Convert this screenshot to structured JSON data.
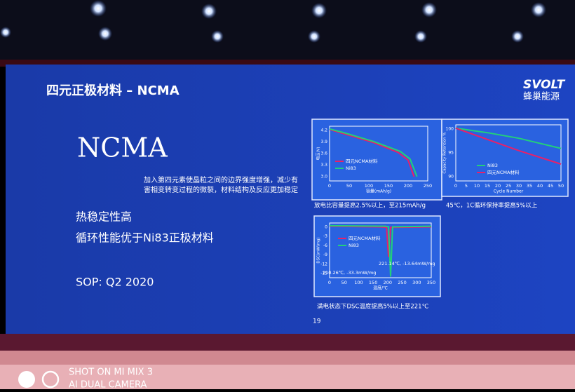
{
  "slide": {
    "title": "四元正极材料 – NCMA",
    "logo": "SVOLT",
    "logo_sub": "蜂巢能源",
    "heading": "NCMA",
    "description": [
      "加入第四元素使晶粒之间的边界强度增强，减少有",
      "害相变转变过程的微裂，材料结构及反应更加稳定"
    ],
    "points": [
      "热稳定性高",
      "循环性能优于Ni83正极材料"
    ],
    "sop": "SOP: Q2 2020",
    "page": "19",
    "charts": [
      {
        "ylabel": "电压(V)",
        "yticks": [
          "4.2",
          "3.9",
          "3.6",
          "3.3",
          "3.0"
        ],
        "xticks": [
          "0",
          "50",
          "100",
          "150",
          "200",
          "250"
        ],
        "xlabel": "容量(mAh/g)",
        "legend": [
          "四元NCMA材料",
          "Ni83"
        ],
        "caption": "放电比容量提高2.5%以上，至215mAh/g"
      },
      {
        "ylabel": "Capacity Retention %",
        "yticks": [
          "100",
          "95",
          "90"
        ],
        "xticks": [
          "0",
          "5",
          "10",
          "15",
          "20",
          "25",
          "30",
          "35",
          "40",
          "45",
          "50"
        ],
        "xlabel": "Cycle Number",
        "legend": [
          "Ni83",
          "四元NCMA材料"
        ],
        "caption": "45℃，1C循环保持率提高5%以上"
      },
      {
        "ylabel": "DSC(mW/mg)",
        "yticks": [
          "0",
          "-3",
          "-6",
          "-9",
          "-12",
          "-15"
        ],
        "xticks": [
          "0",
          "50",
          "100",
          "150",
          "200",
          "250",
          "300",
          "350"
        ],
        "xlabel": "温度/℃",
        "legend": [
          "四元NCMA材料",
          "Ni83"
        ],
        "annotations": [
          "221.14℃, -13.64mW/mg",
          "210.26℃, -33.3mW/mg"
        ],
        "caption": "满电状态下DSC温度提高5%以上至221℃"
      }
    ]
  },
  "watermark": [
    "SHOT ON MI MIX 3",
    "AI DUAL CAMERA"
  ]
}
